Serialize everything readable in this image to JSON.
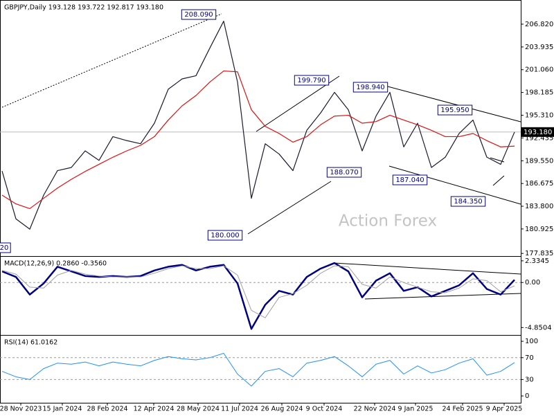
{
  "chart_data": [
    {
      "type": "line",
      "title": "GBPJPY,Daily 193.128 193.722 192.817 193.180",
      "watermark": "Action Forex",
      "ylim": [
        177.5,
        209.7
      ],
      "yticks": [
        {
          "value": 206.82,
          "label": "206.820"
        },
        {
          "value": 203.935,
          "label": "203.935"
        },
        {
          "value": 201.06,
          "label": "201.060"
        },
        {
          "value": 198.185,
          "label": "198.185"
        },
        {
          "value": 195.31,
          "label": "195.310"
        },
        {
          "value": 192.435,
          "label": "192.435"
        },
        {
          "value": 189.55,
          "label": "189.550"
        },
        {
          "value": 186.675,
          "label": "186.675"
        },
        {
          "value": 183.8,
          "label": "183.800"
        },
        {
          "value": 180.925,
          "label": "180.925"
        },
        {
          "value": 177.835,
          "label": "177.835"
        }
      ],
      "current_price": {
        "value": 193.18,
        "label": "193.180"
      },
      "annotations": [
        "208.090",
        "199.790",
        "198.940",
        "195.950",
        "188.070",
        "187.040",
        "184.350",
        "180.000",
        "20"
      ],
      "series": [
        {
          "color": "#1a1a2e",
          "values": [
            188.25,
            182.2,
            180.9,
            185.2,
            188.3,
            188.7,
            190.8,
            189.6,
            192.6,
            192.1,
            191.7,
            194.3,
            198.6,
            199.9,
            200.3,
            203.8,
            207.2,
            199.5,
            184.8,
            191.7,
            190.4,
            188.3,
            193.4,
            195.6,
            198.2,
            196.0,
            190.8,
            195.2,
            198.2,
            191.3,
            194.3,
            188.7,
            190.0,
            193.0,
            194.7,
            190.0,
            189.1,
            193.18
          ]
        },
        {
          "color": "#e01010",
          "values": [
            185.2,
            184.1,
            183.5,
            184.8,
            186.1,
            187.2,
            188.2,
            189.1,
            190.0,
            190.8,
            191.5,
            192.6,
            194.7,
            196.5,
            197.8,
            199.5,
            200.9,
            200.8,
            196.0,
            193.9,
            193.0,
            191.9,
            192.6,
            194.1,
            195.2,
            195.3,
            194.3,
            194.5,
            195.3,
            194.7,
            194.1,
            193.4,
            192.6,
            192.6,
            193.0,
            192.1,
            191.3,
            191.4
          ]
        }
      ]
    },
    {
      "type": "line",
      "title": "MACD(12,26,9) 0.2860 -0.3560",
      "ylim": [
        -5.5,
        2.7
      ],
      "yticks": [
        2.3345,
        {
          "value": 0,
          "label": "0.00"
        },
        -4.8504
      ],
      "level_lines": [
        0
      ],
      "series": [
        {
          "color": "#000080",
          "width": 2.5,
          "values": [
            1.2,
            0.6,
            -1.3,
            -0.1,
            1.7,
            1.2,
            0.7,
            0.6,
            0.7,
            0.6,
            0.7,
            1.3,
            1.7,
            1.9,
            1.3,
            1.7,
            1.9,
            -0.1,
            -5.0,
            -2.4,
            -0.9,
            -1.3,
            0.6,
            1.5,
            2.1,
            1.2,
            -1.6,
            0.2,
            1.0,
            -0.9,
            -0.5,
            -1.5,
            -0.9,
            -0.3,
            1.0,
            -0.7,
            -1.3,
            0.286
          ]
        },
        {
          "color": "#a0a0a0",
          "width": 1,
          "values": [
            1.3,
            0.9,
            -0.5,
            -0.6,
            0.8,
            1.3,
            0.9,
            0.7,
            0.6,
            0.6,
            0.6,
            1.0,
            1.5,
            1.8,
            1.5,
            1.5,
            1.8,
            0.8,
            -3.0,
            -3.8,
            -1.6,
            -1.2,
            -0.3,
            1.0,
            1.8,
            1.7,
            -0.2,
            -0.6,
            0.6,
            0.0,
            -0.5,
            -1.0,
            -1.1,
            -0.6,
            0.4,
            0.2,
            -1.0,
            -0.356
          ]
        }
      ]
    },
    {
      "type": "line",
      "title": "RSI(14) 61.0162",
      "ylim": [
        -10,
        109
      ],
      "yticks": [
        100,
        70,
        30,
        0
      ],
      "level_lines": [
        70,
        30
      ],
      "xlim": [
        -0.15,
        37.45
      ],
      "xticks": [
        {
          "value": 1.35,
          "label": "28 Nov 2023"
        },
        {
          "value": 4.35,
          "label": "15 Jan 2024"
        },
        {
          "value": 7.6,
          "label": "28 Feb 2024"
        },
        {
          "value": 10.95,
          "label": "12 Apr 2024"
        },
        {
          "value": 14.15,
          "label": "28 May 2024"
        },
        {
          "value": 17.15,
          "label": "11 Jul 2024"
        },
        {
          "value": 20.2,
          "label": "26 Aug 2024"
        },
        {
          "value": 23.25,
          "label": "9 Oct 2024"
        },
        {
          "value": 26.9,
          "label": "22 Nov 2024"
        },
        {
          "value": 29.85,
          "label": "9 Jan 2025"
        },
        {
          "value": 33.25,
          "label": "24 Feb 2025"
        },
        {
          "value": 36.25,
          "label": "9 Apr 2025"
        }
      ],
      "series": [
        {
          "color": "#1e90ff",
          "width": 1,
          "values": [
            45,
            35,
            30,
            50,
            60,
            58,
            62,
            55,
            62,
            58,
            55,
            65,
            72,
            68,
            66,
            70,
            78,
            40,
            18,
            45,
            50,
            35,
            60,
            65,
            72,
            55,
            35,
            58,
            65,
            40,
            55,
            42,
            48,
            60,
            68,
            38,
            45,
            61.0162
          ]
        }
      ]
    }
  ]
}
